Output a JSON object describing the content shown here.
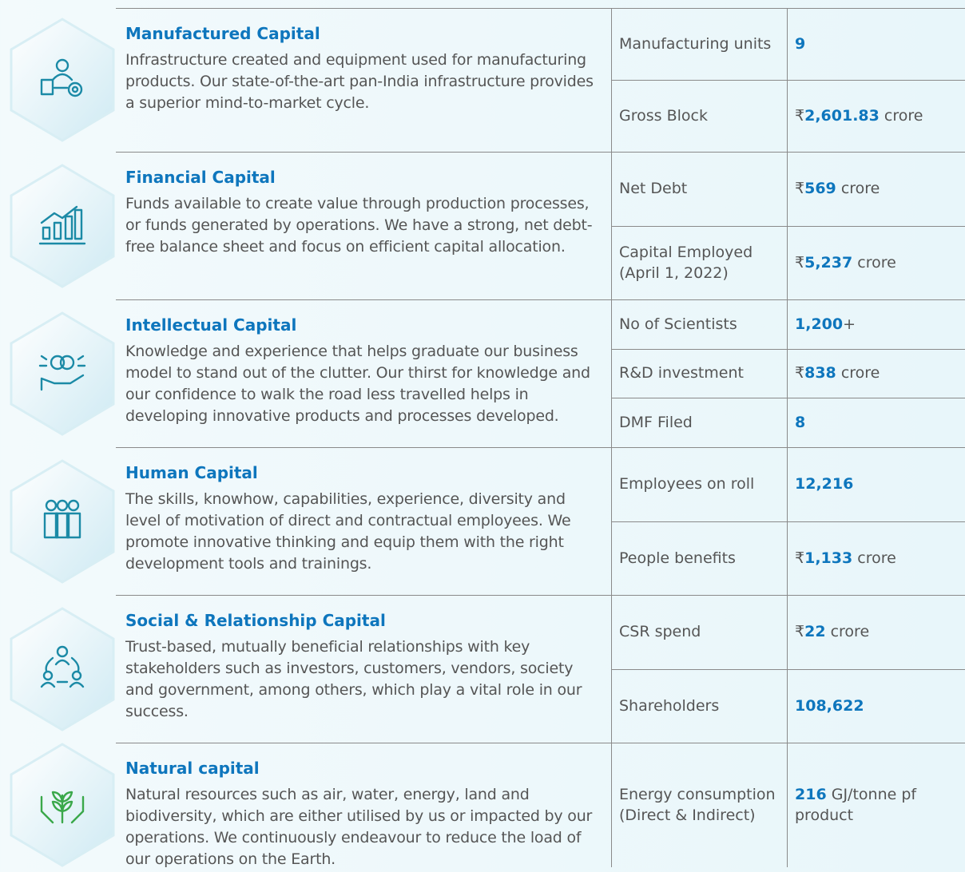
{
  "rows": [
    {
      "title": "Manufactured Capital",
      "description": "Infrastructure created and equipment used for manufacturing products. Our state-of-the-art pan-India infrastructure provides a superior mind-to-market cycle.",
      "metrics": [
        {
          "label": "Manufacturing units",
          "value": "9"
        },
        {
          "label": "Gross Block",
          "prefix": "₹",
          "value": "2,601.83",
          "suffix": "crore"
        }
      ]
    },
    {
      "title": "Financial Capital",
      "description": "Funds available to create value through production processes, or funds generated by operations. We have a strong, net debt-free balance sheet and focus on efficient capital allocation.",
      "metrics": [
        {
          "label": "Net Debt",
          "prefix": "₹",
          "value": "569",
          "suffix": "crore"
        },
        {
          "label": "Capital Employed (April 1, 2022)",
          "prefix": "₹",
          "value": "5,237",
          "suffix": "crore"
        }
      ]
    },
    {
      "title": "Intellectual Capital",
      "description": "Knowledge and experience that helps graduate our business model to stand out of the clutter. Our thirst for knowledge and our confidence to walk the road less travelled helps in developing innovative products and processes developed.",
      "metrics": [
        {
          "label": "No of Scientists",
          "value": "1,200",
          "suffix": "+"
        },
        {
          "label": "R&D investment",
          "prefix": "₹",
          "value": "838",
          "suffix": "crore"
        },
        {
          "label": "DMF Filed",
          "value": "8"
        }
      ]
    },
    {
      "title": "Human Capital",
      "description": "The skills, knowhow, capabilities, experience, diversity and level of motivation of direct and contractual employees. We promote innovative thinking and equip them with the right development tools and trainings.",
      "metrics": [
        {
          "label": "Employees on roll",
          "value": "12,216"
        },
        {
          "label": "People benefits",
          "prefix": "₹",
          "value": "1,133",
          "suffix": "crore"
        }
      ]
    },
    {
      "title": "Social & Relationship Capital",
      "description": "Trust-based, mutually beneficial relationships with key stakeholders such as investors, customers, vendors, society and government, among others, which play a vital role in our success.",
      "metrics": [
        {
          "label": "CSR spend",
          "prefix": "₹",
          "value": "22",
          "suffix": "crore"
        },
        {
          "label": "Shareholders",
          "value": "108,622"
        }
      ]
    },
    {
      "title": "Natural capital",
      "description": "Natural resources such as air, water, energy, land and biodiversity, which are either utilised by us or impacted by our operations. We continuously endeavour to reduce the load of our operations on the Earth.",
      "metrics": [
        {
          "label": "Energy consumption (Direct & Indirect)",
          "value": "216",
          "suffix": "GJ/tonne pf product"
        }
      ]
    }
  ]
}
